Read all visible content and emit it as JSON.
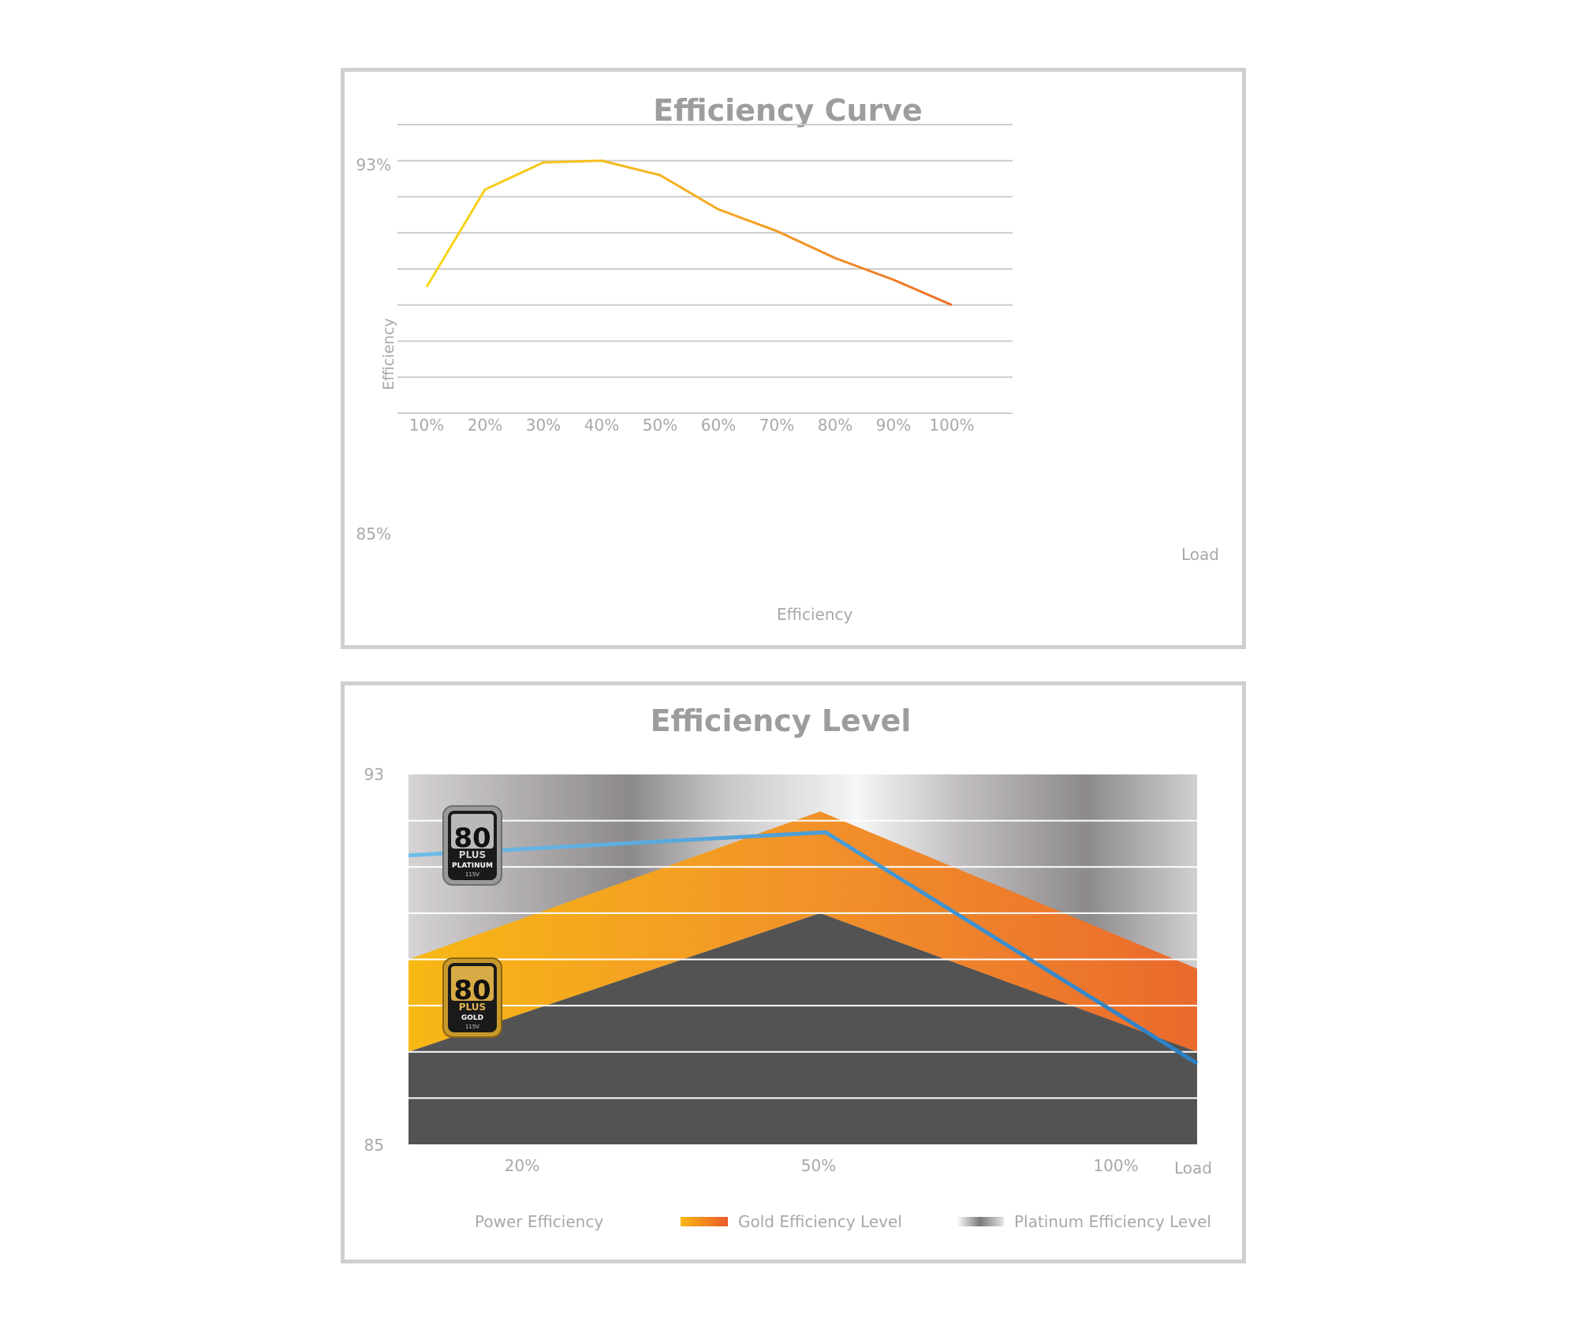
{
  "chart_data": [
    {
      "type": "line",
      "title": "Efficiency Curve",
      "ylabel": "Efficiency",
      "xlabel": "Load",
      "ytick_labels": [
        "93%",
        "85%"
      ],
      "ylim": [
        85,
        93
      ],
      "grid": true,
      "categories": [
        "10%",
        "20%",
        "30%",
        "40%",
        "50%",
        "60%",
        "70%",
        "80%",
        "90%",
        "100%"
      ],
      "series": [
        {
          "name": "Efficiency",
          "values": [
            88.5,
            91.2,
            91.95,
            92.0,
            91.6,
            90.65,
            90.05,
            89.3,
            88.7,
            88.0
          ]
        }
      ],
      "legend": "bottom-center",
      "colors": {
        "gradient_start": "#f7d917",
        "gradient_mid": "#f5a623",
        "gradient_end": "#e8432a",
        "grid": "#cccccc",
        "text": "#a8a8a8",
        "title": "#9d9d9d"
      }
    },
    {
      "type": "line",
      "title": "Efficiency Level",
      "xlabel": "Load",
      "ytick_labels": [
        "93",
        "85"
      ],
      "ylim": [
        85,
        93
      ],
      "grid": true,
      "categories": [
        "20%",
        "50%",
        "100%"
      ],
      "series": [
        {
          "name": "Power Efficiency",
          "values": [
            91.25,
            91.75,
            86.75
          ]
        },
        {
          "name": "Gold Efficiency Level",
          "values": [
            87.0,
            90.0,
            87.0
          ]
        },
        {
          "name": "Platinum Efficiency Level",
          "values": [
            89.0,
            92.0,
            89.0
          ]
        }
      ],
      "badges": [
        {
          "number": "80",
          "brand": "PLUS",
          "level": "PLATINUM",
          "voltage": "115V"
        },
        {
          "number": "80",
          "brand": "PLUS",
          "level": "GOLD",
          "voltage": "115V"
        }
      ],
      "legend": "bottom",
      "colors": {
        "power_line": "#2b8fd0",
        "power_line_light": "#6fbde9",
        "gold_start": "#f7b814",
        "gold_end": "#ea6a2c",
        "platinum_dark": "#535353",
        "platinum_silver": "#b9b6b8",
        "grid": "#ffffff"
      }
    }
  ]
}
